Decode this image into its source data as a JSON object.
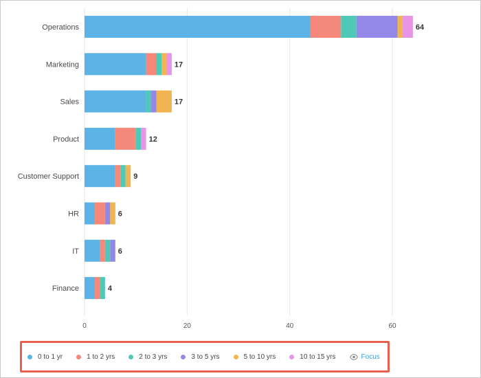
{
  "chart_data": {
    "type": "bar",
    "orientation": "horizontal",
    "stacked": true,
    "title": "",
    "xlabel": "",
    "ylabel": "",
    "xlim": [
      0,
      64
    ],
    "xticks": [
      0,
      20,
      40,
      60
    ],
    "grid": true,
    "legend_position": "bottom",
    "categories": [
      "Operations",
      "Marketing",
      "Sales",
      "Product",
      "Customer Support",
      "HR",
      "IT",
      "Finance"
    ],
    "totals": [
      64,
      17,
      17,
      12,
      9,
      6,
      6,
      4
    ],
    "series": [
      {
        "name": "0 to 1 yr",
        "color": "#5bb4e5",
        "values": [
          44,
          12,
          12,
          6,
          6,
          2,
          3,
          2
        ]
      },
      {
        "name": "1 to 2 yrs",
        "color": "#f4897b",
        "values": [
          6,
          2,
          0,
          4,
          1,
          2,
          1,
          1
        ]
      },
      {
        "name": "2 to 3 yrs",
        "color": "#4fc9b6",
        "values": [
          3,
          1,
          1,
          1,
          1,
          0,
          1,
          1
        ]
      },
      {
        "name": "3 to 5 yrs",
        "color": "#9387e8",
        "values": [
          8,
          0,
          1,
          0,
          0,
          1,
          1,
          0
        ]
      },
      {
        "name": "5 to 10 yrs",
        "color": "#f0b550",
        "values": [
          1,
          1,
          3,
          0,
          1,
          1,
          0,
          0
        ]
      },
      {
        "name": "10 to 15 yrs",
        "color": "#e795e6",
        "values": [
          2,
          1,
          0,
          1,
          0,
          0,
          0,
          0
        ]
      }
    ]
  },
  "legend": {
    "focus_label": "Focus",
    "focus_icon": "eye-icon"
  },
  "colors": {
    "legend_border": "#e8604f",
    "focus_text": "#3aa0d8"
  }
}
